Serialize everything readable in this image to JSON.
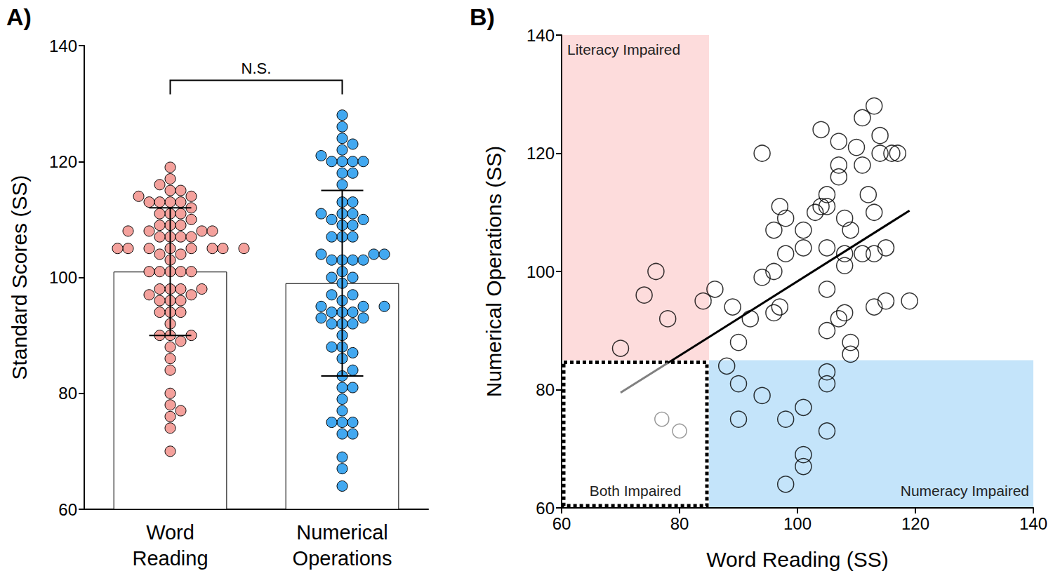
{
  "chart_data": [
    {
      "type": "bar",
      "title": "A)",
      "categories": [
        "Word\nReading",
        "Numerical\nOperations"
      ],
      "values": [
        101,
        99
      ],
      "error": [
        11,
        16
      ],
      "color": "#ffffff",
      "points": [
        [
          70,
          74,
          76,
          78,
          84,
          86,
          89,
          90,
          92,
          88,
          90,
          90,
          94,
          94,
          94,
          96,
          96,
          97,
          98,
          96,
          97,
          98,
          98,
          98,
          101,
          101,
          101,
          101,
          101,
          103,
          104,
          104,
          105,
          105,
          105,
          105,
          105,
          105,
          105,
          105,
          107,
          107,
          107,
          107,
          108,
          108,
          108,
          108,
          109,
          109,
          109,
          110,
          111,
          111,
          111,
          112,
          113,
          113,
          113,
          113,
          114,
          114,
          116,
          115,
          115,
          117,
          119,
          77,
          80
        ],
        [
          87,
          96,
          100,
          92,
          95,
          97,
          94,
          88,
          92,
          84,
          81,
          75,
          79,
          120,
          99,
          100,
          107,
          111,
          109,
          93,
          94,
          103,
          64,
          75,
          107,
          104,
          77,
          69,
          67,
          110,
          111,
          124,
          113,
          111,
          104,
          97,
          90,
          83,
          81,
          73,
          122,
          118,
          116,
          92,
          93,
          101,
          103,
          109,
          107,
          88,
          86,
          121,
          126,
          118,
          103,
          113,
          128,
          110,
          103,
          94,
          123,
          120,
          120,
          95,
          104,
          120,
          95,
          75,
          73
        ]
      ],
      "colors": [
        "#f4a19c",
        "#42a8f0"
      ],
      "ylabel": "Standard Scores (SS)",
      "ylim": [
        60,
        140
      ],
      "yticks": [
        60,
        80,
        100,
        120,
        140
      ],
      "annotation": {
        "text": "N.S.",
        "y": 134
      }
    },
    {
      "type": "scatter",
      "title": "B)",
      "xlabel": "Word Reading (SS)",
      "ylabel": "Numerical Operations (SS)",
      "xlim": [
        60,
        140
      ],
      "ylim": [
        60,
        140
      ],
      "xticks": [
        60,
        80,
        100,
        120,
        140
      ],
      "yticks": [
        60,
        80,
        100,
        120,
        140
      ],
      "series": [
        {
          "color": "#000000",
          "marker": "circle",
          "x": [
            70,
            74,
            76,
            78,
            84,
            86,
            89,
            90,
            92,
            88,
            90,
            90,
            94,
            94,
            94,
            96,
            96,
            97,
            98,
            96,
            97,
            98,
            98,
            98,
            101,
            101,
            101,
            101,
            101,
            103,
            104,
            104,
            105,
            105,
            105,
            105,
            105,
            105,
            105,
            105,
            107,
            107,
            107,
            107,
            108,
            108,
            108,
            108,
            109,
            109,
            109,
            110,
            111,
            111,
            111,
            112,
            113,
            113,
            113,
            113,
            114,
            114,
            116,
            115,
            115,
            117,
            119
          ],
          "y": [
            87,
            96,
            100,
            92,
            95,
            97,
            94,
            88,
            92,
            84,
            81,
            75,
            79,
            120,
            99,
            100,
            107,
            111,
            109,
            93,
            94,
            103,
            64,
            75,
            107,
            104,
            77,
            69,
            67,
            110,
            111,
            124,
            113,
            111,
            104,
            97,
            90,
            83,
            81,
            73,
            122,
            118,
            116,
            92,
            93,
            101,
            103,
            109,
            107,
            88,
            86,
            121,
            126,
            118,
            103,
            113,
            128,
            110,
            103,
            94,
            123,
            120,
            120,
            95,
            104,
            120,
            95
          ]
        },
        {
          "color": "#808080",
          "marker": "circle",
          "x": [
            77,
            80
          ],
          "y": [
            75,
            73
          ]
        }
      ],
      "fit": {
        "x": [
          70,
          78,
          119
        ],
        "y": [
          79.5,
          84.5,
          110.3
        ],
        "colors": [
          "#808080",
          "#000000"
        ]
      },
      "regions": [
        {
          "label": "Literacy Impaired",
          "x": [
            60,
            85
          ],
          "y": [
            85,
            140
          ],
          "color": "#fddcdc"
        },
        {
          "label": "Numeracy Impaired",
          "x": [
            85,
            140
          ],
          "y": [
            60,
            85
          ],
          "color": "#c4e4fa"
        },
        {
          "label": "Both Impaired",
          "x": [
            60,
            85
          ],
          "y": [
            60,
            85
          ],
          "line_style": "dotted"
        }
      ]
    }
  ]
}
